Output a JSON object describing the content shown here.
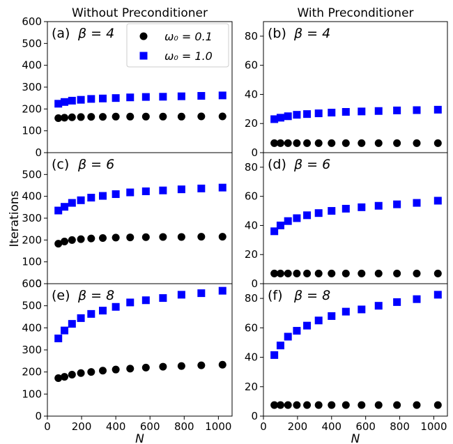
{
  "chart_data": [
    {
      "type": "scatter",
      "panel": "(a)",
      "annotation": "β = 4",
      "column_title": "Without Preconditioner",
      "ylabel": "",
      "xlabel": "",
      "xlim": [
        0,
        1080
      ],
      "ylim": [
        0,
        600
      ],
      "yticks": [
        0,
        100,
        200,
        300,
        400,
        500,
        600
      ],
      "legend": {
        "placement": "top-right",
        "entries": [
          {
            "label": "ω₀ = 0.1",
            "color": "#000000",
            "marker": "circle"
          },
          {
            "label": "ω₀ = 1.0",
            "color": "#0000ff",
            "marker": "square"
          }
        ]
      },
      "x": [
        64,
        100,
        144,
        196,
        256,
        324,
        400,
        484,
        576,
        676,
        784,
        900,
        1024
      ],
      "series": [
        {
          "color": "#000000",
          "marker": "circle",
          "values": [
            158,
            160,
            162,
            163,
            164,
            164,
            165,
            165,
            165,
            165,
            165,
            166,
            166
          ]
        },
        {
          "color": "#0000ff",
          "marker": "square",
          "values": [
            224,
            232,
            238,
            242,
            246,
            248,
            250,
            253,
            255,
            256,
            258,
            260,
            262
          ]
        }
      ]
    },
    {
      "type": "scatter",
      "panel": "(b)",
      "annotation": "β = 4",
      "column_title": "With Preconditioner",
      "xlabel": "",
      "xlim": [
        0,
        1080
      ],
      "ylim": [
        0,
        90
      ],
      "yticks": [
        0,
        20,
        40,
        60,
        80
      ],
      "x": [
        64,
        100,
        144,
        196,
        256,
        324,
        400,
        484,
        576,
        676,
        784,
        900,
        1024
      ],
      "series": [
        {
          "color": "#000000",
          "marker": "circle",
          "values": [
            6.5,
            6.5,
            6.5,
            6.5,
            6.5,
            6.5,
            6.5,
            6.5,
            6.5,
            6.5,
            6.5,
            6.5,
            6.5
          ]
        },
        {
          "color": "#0000ff",
          "marker": "square",
          "values": [
            23,
            24,
            25,
            26,
            26.5,
            27,
            27.5,
            28,
            28.3,
            28.6,
            29,
            29.2,
            29.5
          ]
        }
      ]
    },
    {
      "type": "scatter",
      "panel": "(c)",
      "annotation": "β = 6",
      "ylabel": "Iterations",
      "xlabel": "",
      "xlim": [
        0,
        1080
      ],
      "ylim": [
        0,
        600
      ],
      "yticks": [
        0,
        100,
        200,
        300,
        400,
        500
      ],
      "x": [
        64,
        100,
        144,
        196,
        256,
        324,
        400,
        484,
        576,
        676,
        784,
        900,
        1024
      ],
      "series": [
        {
          "color": "#000000",
          "marker": "circle",
          "values": [
            183,
            193,
            200,
            204,
            207,
            209,
            211,
            212,
            213,
            214,
            214,
            215,
            215
          ]
        },
        {
          "color": "#0000ff",
          "marker": "square",
          "values": [
            335,
            352,
            370,
            382,
            394,
            402,
            410,
            418,
            423,
            427,
            432,
            436,
            440
          ]
        }
      ]
    },
    {
      "type": "scatter",
      "panel": "(d)",
      "annotation": "β = 6",
      "xlabel": "",
      "xlim": [
        0,
        1080
      ],
      "ylim": [
        0,
        90
      ],
      "yticks": [
        0,
        20,
        40,
        60,
        80
      ],
      "x": [
        64,
        100,
        144,
        196,
        256,
        324,
        400,
        484,
        576,
        676,
        784,
        900,
        1024
      ],
      "series": [
        {
          "color": "#000000",
          "marker": "circle",
          "values": [
            7,
            7,
            7,
            7,
            7,
            7,
            7,
            7,
            7,
            7,
            7,
            7,
            7
          ]
        },
        {
          "color": "#0000ff",
          "marker": "square",
          "values": [
            36,
            40,
            43,
            45,
            47,
            48.5,
            50,
            51.5,
            52.5,
            53.5,
            54.5,
            55.5,
            57
          ]
        }
      ]
    },
    {
      "type": "scatter",
      "panel": "(e)",
      "annotation": "β = 8",
      "xlabel": "N",
      "xlim": [
        0,
        1080
      ],
      "ylim": [
        0,
        600
      ],
      "yticks": [
        0,
        100,
        200,
        300,
        400,
        500,
        600
      ],
      "xticks": [
        0,
        200,
        400,
        600,
        800,
        1000
      ],
      "x": [
        64,
        100,
        144,
        196,
        256,
        324,
        400,
        484,
        576,
        676,
        784,
        900,
        1024
      ],
      "series": [
        {
          "color": "#000000",
          "marker": "circle",
          "values": [
            172,
            178,
            188,
            195,
            200,
            206,
            211,
            215,
            220,
            224,
            227,
            230,
            233
          ]
        },
        {
          "color": "#0000ff",
          "marker": "square",
          "values": [
            352,
            388,
            418,
            444,
            463,
            478,
            495,
            515,
            525,
            535,
            550,
            557,
            568
          ]
        }
      ]
    },
    {
      "type": "scatter",
      "panel": "(f)",
      "annotation": "β = 8",
      "xlabel": "N",
      "xlim": [
        0,
        1080
      ],
      "ylim": [
        0,
        90
      ],
      "yticks": [
        0,
        20,
        40,
        60,
        80
      ],
      "xticks": [
        0,
        200,
        400,
        600,
        800,
        1000
      ],
      "x": [
        64,
        100,
        144,
        196,
        256,
        324,
        400,
        484,
        576,
        676,
        784,
        900,
        1024
      ],
      "series": [
        {
          "color": "#000000",
          "marker": "circle",
          "values": [
            7.5,
            7.5,
            7.5,
            7.5,
            7.5,
            7.5,
            7.5,
            7.5,
            7.5,
            7.5,
            7.5,
            7.5,
            7.5
          ]
        },
        {
          "color": "#0000ff",
          "marker": "square",
          "values": [
            41.5,
            48,
            54,
            58,
            61.5,
            65,
            68,
            71,
            72.5,
            75,
            77.5,
            79.5,
            82.5
          ]
        }
      ]
    }
  ]
}
